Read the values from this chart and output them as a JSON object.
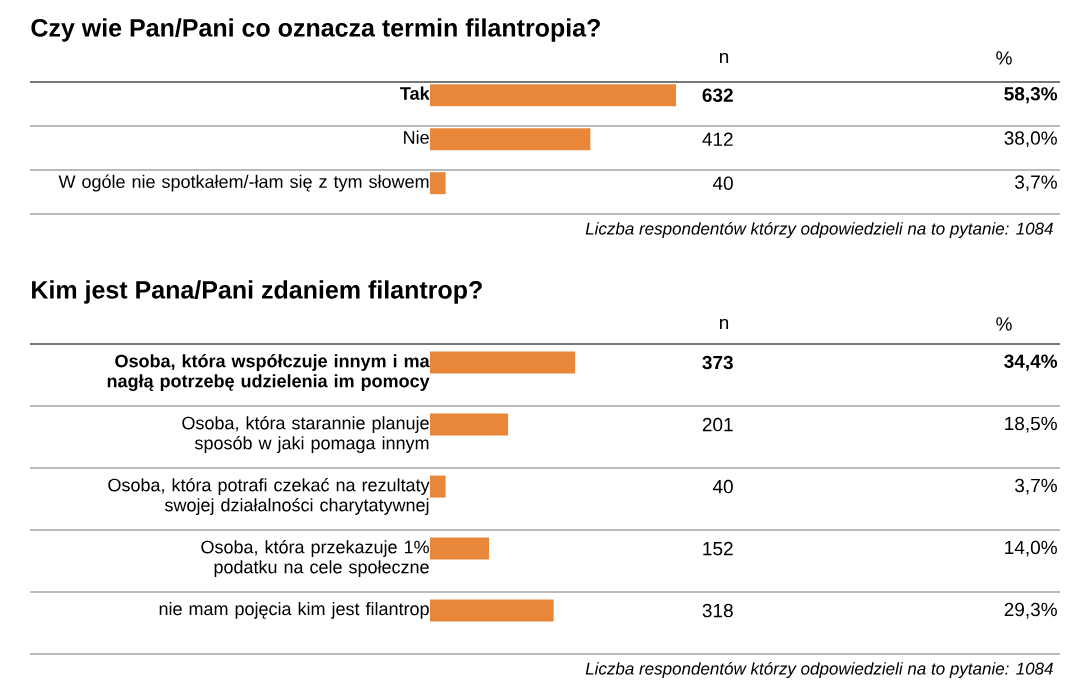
{
  "chart_data": [
    {
      "type": "bar",
      "orientation": "horizontal",
      "title": "Czy wie Pan/Pani co oznacza termin filantropia?",
      "categories": [
        "Tak",
        "Nie",
        "W ogóle nie spotkałem/-łam się z tym słowem"
      ],
      "values": [
        58.3,
        38.0,
        3.7
      ],
      "value_labels": [
        "58,3%",
        "38,0%",
        "3,7%"
      ],
      "color": "#e8873a",
      "annotations": [
        "n",
        "%",
        "632",
        "412",
        "40",
        "Liczba respondentów którzy odpowiedzieli na to pytanie:   1084"
      ]
    },
    {
      "type": "bar",
      "orientation": "horizontal",
      "title": "Kim jest Pana/Pani zdaniem filantrop?",
      "categories": [
        "Osoba, która współczuje innym i ma nagłą potrzebę udzielenia im pomocy",
        "Osoba, która starannie planuje sposób w jaki pomaga innym",
        "Osoba, która potrafi czekać na rezultaty swojej działalności charytatywnej",
        "Osoba, która przekazuje 1% podatku na cele społeczne",
        "nie mam pojęcia kim jest filantrop"
      ],
      "values": [
        34.4,
        18.5,
        3.7,
        14.0,
        29.3
      ],
      "value_labels": [
        "34,4%",
        "18,5%",
        "3,7%",
        "14,0%",
        "29,3%"
      ],
      "color": "#e8873a",
      "annotations": [
        "n",
        "%",
        "373",
        "201",
        "40",
        "152",
        "318",
        "Liczba respondentów którzy odpowiedzieli na to pytanie:   1084"
      ]
    }
  ]
}
